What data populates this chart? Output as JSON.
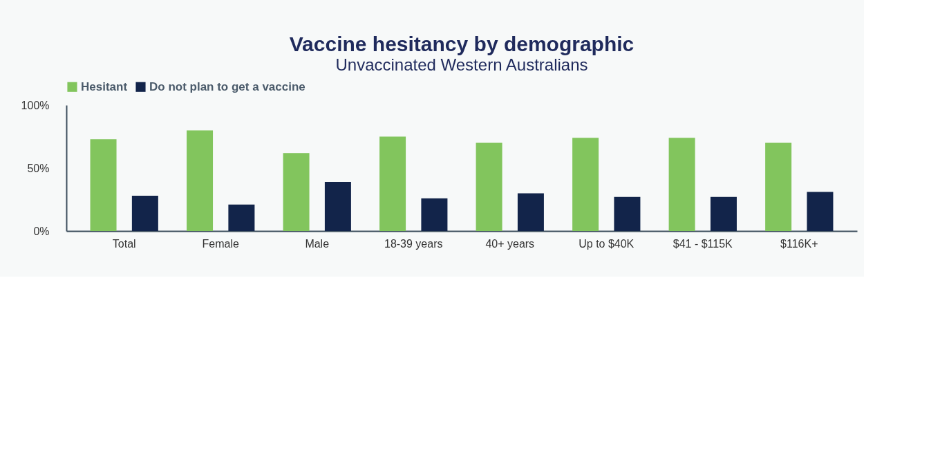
{
  "chart_data": {
    "type": "bar",
    "title": "Vaccine hesitancy by demographic",
    "subtitle": "Unvaccinated Western Australians",
    "categories": [
      "Total",
      "Female",
      "Male",
      "18-39 years",
      "40+ years",
      "Up to $40K",
      "$41 - $115K",
      "$116K+"
    ],
    "series": [
      {
        "name": "Hesitant",
        "color": "#82c55d",
        "values": [
          73,
          80,
          62,
          75,
          70,
          74,
          74,
          70
        ]
      },
      {
        "name": "Do not plan to get a vaccine",
        "color": "#12244a",
        "values": [
          28,
          21,
          39,
          26,
          30,
          27,
          27,
          31
        ]
      }
    ],
    "ylim": [
      0,
      100
    ],
    "yticks": [
      {
        "value": 0,
        "label": "0%"
      },
      {
        "value": 50,
        "label": "50%"
      },
      {
        "value": 100,
        "label": "100%"
      }
    ],
    "grid": false,
    "legend": "top"
  }
}
